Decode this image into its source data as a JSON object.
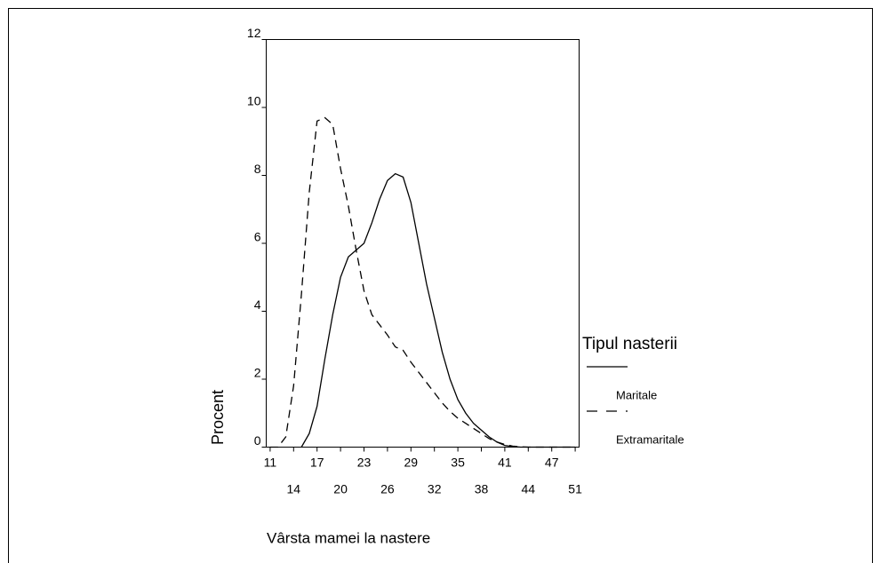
{
  "chart_data": {
    "type": "line",
    "x_label": "Vârsta mamei la nastere",
    "y_label": "Procent",
    "legend_title": "Tipul nasterii",
    "legend_position": "right",
    "categories": [
      11,
      null,
      null,
      14,
      null,
      null,
      17,
      null,
      null,
      20,
      null,
      null,
      23,
      null,
      null,
      26,
      null,
      null,
      29,
      null,
      null,
      32,
      null,
      null,
      35,
      null,
      null,
      38,
      null,
      null,
      41,
      null,
      null,
      44,
      null,
      null,
      47,
      null,
      null,
      51
    ],
    "ylim": [
      0,
      12
    ],
    "yticks": [
      0,
      2,
      4,
      6,
      8,
      10,
      12
    ],
    "series": [
      {
        "name": "Maritale",
        "color": "#000000",
        "line_style": "solid",
        "values": [
          null,
          null,
          null,
          null,
          0,
          0.4,
          1.2,
          2.6,
          3.9,
          5.0,
          5.6,
          5.8,
          6.0,
          6.6,
          7.3,
          7.85,
          8.05,
          7.95,
          7.2,
          6.0,
          4.8,
          3.8,
          2.8,
          2.0,
          1.4,
          1.0,
          0.7,
          0.5,
          0.3,
          0.15,
          0.05,
          0.02,
          0,
          0,
          0,
          0,
          0,
          0,
          0,
          0
        ]
      },
      {
        "name": "Extramaritale",
        "color": "#000000",
        "line_style": "dashed",
        "values": [
          0,
          0,
          0.3,
          1.8,
          4.5,
          7.5,
          9.6,
          9.7,
          9.5,
          8.2,
          7.1,
          5.8,
          4.6,
          3.9,
          3.6,
          3.3,
          2.95,
          2.85,
          2.5,
          2.2,
          1.9,
          1.6,
          1.3,
          1.05,
          0.85,
          0.7,
          0.55,
          0.4,
          0.25,
          0.15,
          0.08,
          0.03,
          0.01,
          0,
          0,
          0,
          0,
          0,
          0,
          0
        ]
      }
    ]
  }
}
